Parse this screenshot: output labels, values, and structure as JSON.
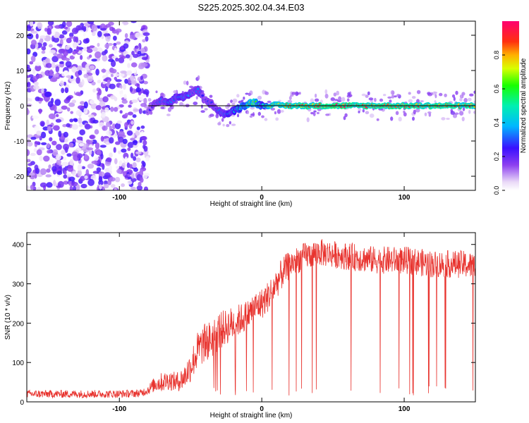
{
  "title": "S225.2025.302.04.34.E03",
  "colors": {
    "snr_line": "#e8332e",
    "axis": "#000000",
    "background": "#ffffff"
  },
  "chart_data": [
    {
      "type": "heatmap",
      "title": "S225.2025.302.04.34.E03",
      "xlabel": "Height of straight line (km)",
      "ylabel": "Frequency (Hz)",
      "xlim": [
        -165,
        150
      ],
      "ylim": [
        -24,
        24
      ],
      "xticks": [
        -100,
        0,
        100
      ],
      "xtick_labels": [
        "-100",
        "0",
        "100"
      ],
      "yticks": [
        -20,
        -10,
        0,
        10,
        20
      ],
      "ytick_labels": [
        "-20",
        "-10",
        "0",
        "10",
        "20"
      ],
      "colorbar": {
        "label": "Normalized spectral amplitude",
        "range": [
          0,
          1
        ],
        "ticks": [
          0.0,
          0.2,
          0.4,
          0.6,
          0.8
        ],
        "tick_labels": [
          "0.0",
          "0.2",
          "0.4",
          "0.6",
          "0.8"
        ]
      },
      "noise_region_x": [
        -165,
        -80
      ],
      "noise_amplitude_range": [
        0.0,
        0.25
      ],
      "ridge": {
        "description": "dominant frequency track",
        "x": [
          -80,
          -75,
          -70,
          -65,
          -60,
          -55,
          -50,
          -45,
          -40,
          -35,
          -30,
          -25,
          -20,
          -15,
          -10,
          -5,
          0,
          10,
          20,
          40,
          60,
          80,
          100,
          120,
          150
        ],
        "frequency": [
          -1.5,
          0.5,
          1.5,
          0.5,
          2.5,
          2.5,
          3.5,
          4.5,
          1.5,
          0.5,
          -1.5,
          -2.5,
          -1.5,
          -0.5,
          0.5,
          1.0,
          0.0,
          0.2,
          0.0,
          0.0,
          0.0,
          0.0,
          0.0,
          0.0,
          0.0
        ],
        "amplitude": [
          0.22,
          0.3,
          0.35,
          0.38,
          0.38,
          0.4,
          0.35,
          0.35,
          0.3,
          0.3,
          0.35,
          0.4,
          0.45,
          0.55,
          0.7,
          0.8,
          0.5,
          0.85,
          0.9,
          0.95,
          0.95,
          0.9,
          0.95,
          0.95,
          0.9
        ]
      }
    },
    {
      "type": "line",
      "xlabel": "Height of straight line (km)",
      "ylabel": "SNR (10 * v/v)",
      "xlim": [
        -165,
        150
      ],
      "ylim": [
        0,
        430
      ],
      "xticks": [
        -100,
        0,
        100
      ],
      "xtick_labels": [
        "-100",
        "0",
        "100"
      ],
      "yticks": [
        0,
        100,
        200,
        300,
        400
      ],
      "ytick_labels": [
        "0",
        "100",
        "200",
        "300",
        "400"
      ],
      "series": [
        {
          "name": "SNR",
          "x": [
            -165,
            -140,
            -120,
            -100,
            -85,
            -80,
            -75,
            -70,
            -65,
            -60,
            -55,
            -50,
            -45,
            -40,
            -35,
            -30,
            -25,
            -20,
            -15,
            -10,
            -5,
            0,
            5,
            10,
            15,
            20,
            25,
            30,
            35,
            40,
            50,
            60,
            70,
            80,
            90,
            100,
            110,
            120,
            130,
            140,
            150
          ],
          "mean": [
            20,
            20,
            20,
            20,
            22,
            30,
            45,
            50,
            55,
            50,
            60,
            90,
            130,
            150,
            160,
            180,
            190,
            200,
            210,
            220,
            240,
            250,
            270,
            300,
            330,
            350,
            360,
            370,
            375,
            380,
            375,
            370,
            365,
            360,
            360,
            360,
            355,
            350,
            350,
            350,
            345
          ],
          "noise": [
            10,
            10,
            10,
            10,
            10,
            12,
            20,
            25,
            25,
            25,
            30,
            40,
            50,
            50,
            50,
            50,
            45,
            45,
            40,
            40,
            40,
            40,
            40,
            40,
            40,
            35,
            35,
            35,
            35,
            35,
            35,
            35,
            35,
            35,
            35,
            35,
            35,
            35,
            35,
            35,
            35
          ]
        }
      ]
    }
  ]
}
